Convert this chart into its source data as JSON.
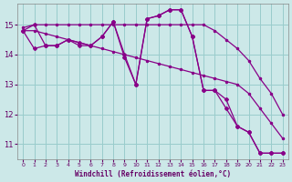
{
  "background_color": "#cce8e8",
  "line_color": "#880088",
  "grid_color": "#99cccc",
  "xlabel": "Windchill (Refroidissement éolien,°C)",
  "xlabel_color": "#660066",
  "tick_color": "#660066",
  "xlim": [
    -0.5,
    23.5
  ],
  "ylim": [
    10.5,
    15.7
  ],
  "yticks": [
    11,
    12,
    13,
    14,
    15
  ],
  "xticks": [
    0,
    1,
    2,
    3,
    4,
    5,
    6,
    7,
    8,
    9,
    10,
    11,
    12,
    13,
    14,
    15,
    16,
    17,
    18,
    19,
    20,
    21,
    22,
    23
  ],
  "series": [
    {
      "x": [
        0,
        1,
        2,
        3,
        4,
        5,
        6,
        7,
        8,
        9,
        10,
        11,
        12,
        13,
        14,
        15,
        16,
        17,
        18,
        19,
        20,
        21,
        22,
        23
      ],
      "y": [
        14.9,
        15.0,
        15.0,
        15.0,
        15.0,
        15.0,
        15.0,
        15.0,
        15.0,
        15.0,
        15.0,
        15.0,
        15.0,
        15.0,
        15.0,
        15.0,
        15.0,
        14.8,
        14.5,
        14.2,
        13.8,
        13.2,
        12.7,
        12.0
      ]
    },
    {
      "x": [
        0,
        1,
        2,
        3,
        4,
        5,
        6,
        7,
        8,
        9,
        10,
        11,
        12,
        13,
        14,
        15,
        16,
        17,
        18,
        19,
        20,
        21,
        22,
        23
      ],
      "y": [
        14.8,
        14.8,
        14.7,
        14.6,
        14.5,
        14.4,
        14.3,
        14.2,
        14.1,
        14.0,
        13.9,
        13.8,
        13.7,
        13.6,
        13.5,
        13.4,
        13.3,
        13.2,
        13.1,
        13.0,
        12.7,
        12.2,
        11.7,
        11.2
      ]
    },
    {
      "x": [
        0,
        1,
        2,
        3,
        4,
        5,
        6,
        7,
        8,
        9,
        10,
        11,
        12,
        13,
        14,
        15,
        16,
        17,
        18,
        19,
        20,
        21,
        22,
        23
      ],
      "y": [
        14.8,
        15.0,
        14.3,
        14.3,
        14.5,
        14.4,
        14.3,
        14.6,
        15.1,
        13.9,
        13.0,
        15.2,
        15.3,
        15.5,
        15.5,
        14.6,
        12.8,
        12.8,
        12.2,
        11.6,
        11.4,
        10.7,
        10.7,
        10.7
      ]
    },
    {
      "x": [
        0,
        1,
        2,
        3,
        4,
        5,
        6,
        7,
        8,
        9,
        10,
        11,
        12,
        13,
        14,
        15,
        16,
        17,
        18,
        19,
        20,
        21,
        22,
        23
      ],
      "y": [
        14.8,
        14.2,
        14.3,
        14.3,
        14.5,
        14.3,
        14.3,
        14.6,
        15.1,
        14.0,
        13.0,
        15.2,
        15.3,
        15.5,
        15.5,
        14.6,
        12.8,
        12.8,
        12.5,
        11.6,
        11.4,
        10.7,
        10.7,
        10.7
      ]
    }
  ]
}
